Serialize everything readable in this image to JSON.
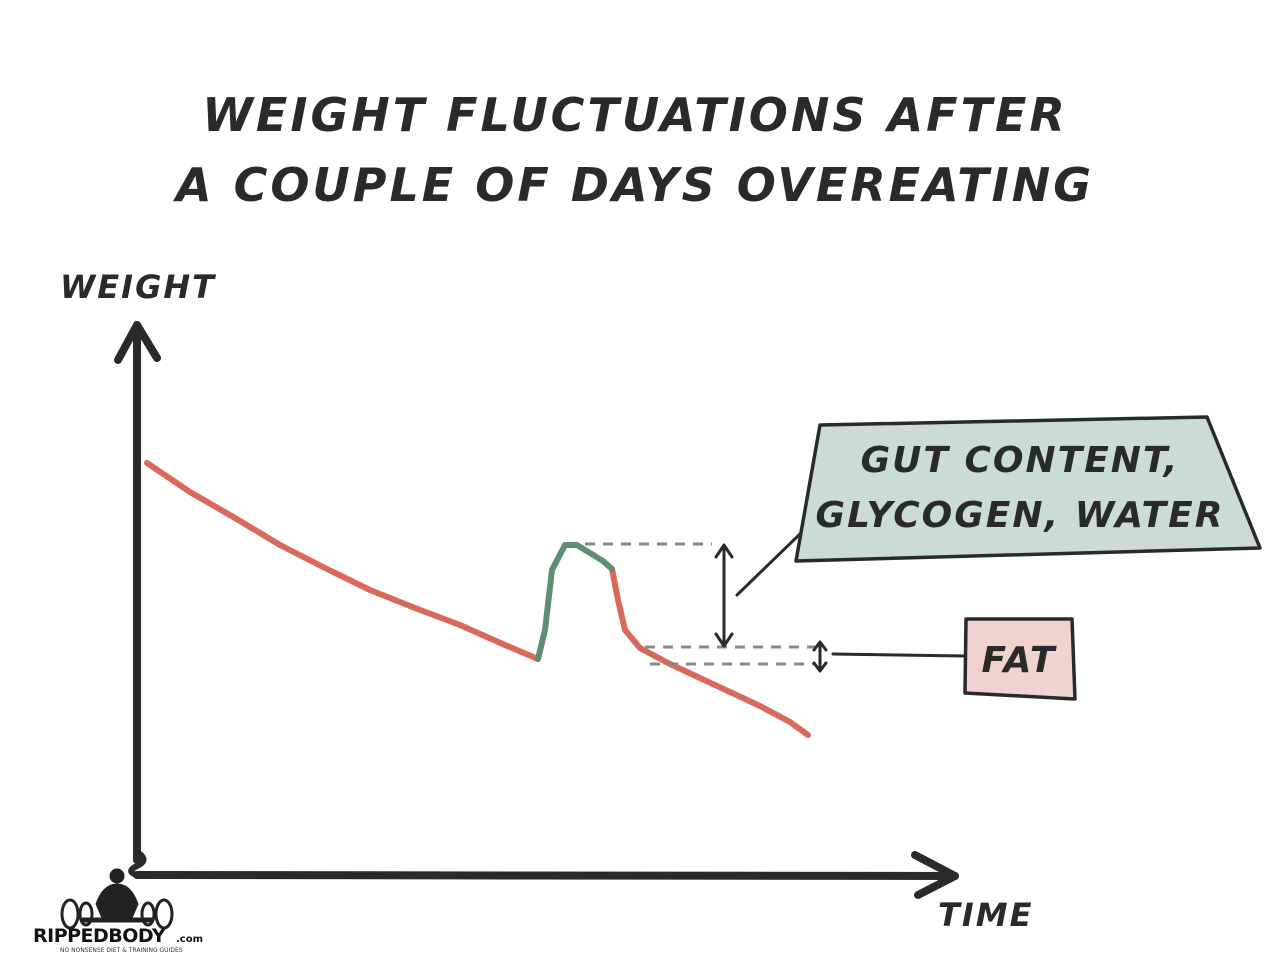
{
  "title": {
    "line1": "WEIGHT FLUCTUATIONS AFTER",
    "line2": "A COUPLE OF DAYS OVEREATING"
  },
  "chart_data": {
    "type": "line",
    "ylabel": "WEIGHT",
    "xlabel": "TIME",
    "grid": false,
    "x_ticks": [],
    "y_ticks": [],
    "series": [
      {
        "color": "#d9695a",
        "segments": [
          {
            "x": [
              0,
              10,
              20,
              30,
              40,
              50,
              60,
              70,
              80,
              85,
              100
            ],
            "y": [
              80,
              74,
              68,
              62,
              57,
              53,
              48,
              44,
              41,
              40,
              37
            ]
          }
        ]
      },
      {
        "color": "#d9695a",
        "segments": [
          {
            "x": [
              59.5,
              61,
              63,
              66,
              70,
              75,
              80,
              85,
              90,
              95,
              100
            ],
            "y": [
              49,
              43,
              37,
              34,
              30,
              26,
              22,
              17,
              13,
              9,
              6
            ]
          }
        ]
      },
      {
        "color": "#5f8f73",
        "segments": [
          {
            "x": [
              59.5,
              60.2,
              61.5,
              63,
              64.5,
              66,
              67.5,
              69.5
            ],
            "y": [
              40,
              48,
              52,
              52.5,
              51.5,
              50,
              48.5,
              47
            ]
          }
        ]
      }
    ],
    "annotations": [
      {
        "label": "GUT CONTENT, GLYCOGEN, WATER",
        "color": "#cbdcd6"
      },
      {
        "label": "FAT",
        "color": "#f0d2cf"
      }
    ]
  },
  "callouts": {
    "gut_line1": "GUT CONTENT,",
    "gut_line2": "GLYCOGEN, WATER",
    "fat": "FAT"
  },
  "logo": {
    "name": "RIPPEDBODY",
    "suffix": ".com",
    "tagline": "NO NONSENSE DIET & TRAINING GUIDES"
  },
  "colors": {
    "ink": "#2a2a2a",
    "trend": "#d9695a",
    "bump": "#5f8f73",
    "gut_box": "#cbdcd6",
    "fat_box": "#f0d2cf",
    "dash": "#888888"
  }
}
